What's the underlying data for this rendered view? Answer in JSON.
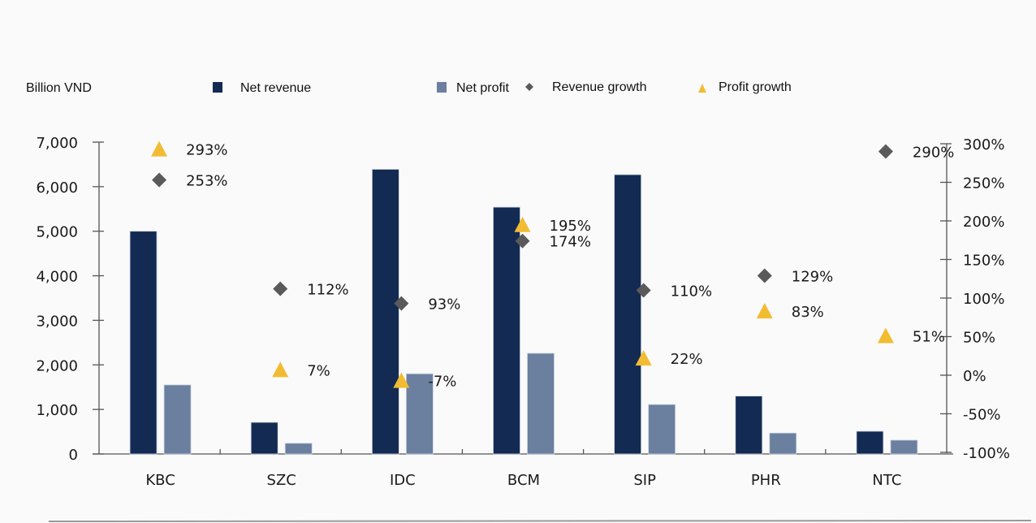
{
  "chart_data": {
    "type": "bar",
    "title": "",
    "unit_label": "Billion VND",
    "xlabel": "",
    "ylabel": "Billion VND",
    "y2label": "",
    "categories": [
      "KBC",
      "SZC",
      "IDC",
      "BCM",
      "SIP",
      "PHR",
      "NTC"
    ],
    "series": [
      {
        "name": "Net revenue",
        "kind": "bar",
        "axis": "left",
        "color": "#132a52",
        "values": [
          5000,
          710,
          6390,
          5540,
          6270,
          1300,
          510
        ]
      },
      {
        "name": "Net profit",
        "kind": "bar",
        "axis": "left",
        "color": "#6b7f9f",
        "values": [
          1550,
          240,
          1800,
          2260,
          1110,
          470,
          310
        ]
      },
      {
        "name": "Revenue growth",
        "kind": "marker",
        "marker": "diamond",
        "axis": "right",
        "color": "#5a5a5a",
        "values": [
          253,
          112,
          93,
          174,
          110,
          129,
          290
        ],
        "labels": [
          "253%",
          "112%",
          "93%",
          "174%",
          "110%",
          "129%",
          "290%"
        ]
      },
      {
        "name": "Profit growth",
        "kind": "marker",
        "marker": "triangle",
        "axis": "right",
        "color": "#f2bc32",
        "values": [
          293,
          7,
          -7,
          195,
          22,
          83,
          51
        ],
        "labels": [
          "293%",
          "7%",
          "-7%",
          "195%",
          "22%",
          "83%",
          "51%"
        ]
      }
    ],
    "y_left": {
      "range": [
        0,
        7000
      ],
      "ticks": [
        0,
        1000,
        2000,
        3000,
        4000,
        5000,
        6000,
        7000
      ],
      "tick_labels": [
        "0",
        "1,000",
        "2,000",
        "3,000",
        "4,000",
        "5,000",
        "6,000",
        "7,000"
      ]
    },
    "y_right": {
      "range": [
        -100,
        300
      ],
      "ticks": [
        -100,
        -50,
        0,
        50,
        100,
        150,
        200,
        250,
        300
      ],
      "tick_labels": [
        "-100%",
        "-50%",
        "0%",
        "50%",
        "100%",
        "150%",
        "200%",
        "250%",
        "300%"
      ]
    },
    "grid": false,
    "legend_position": "top"
  }
}
